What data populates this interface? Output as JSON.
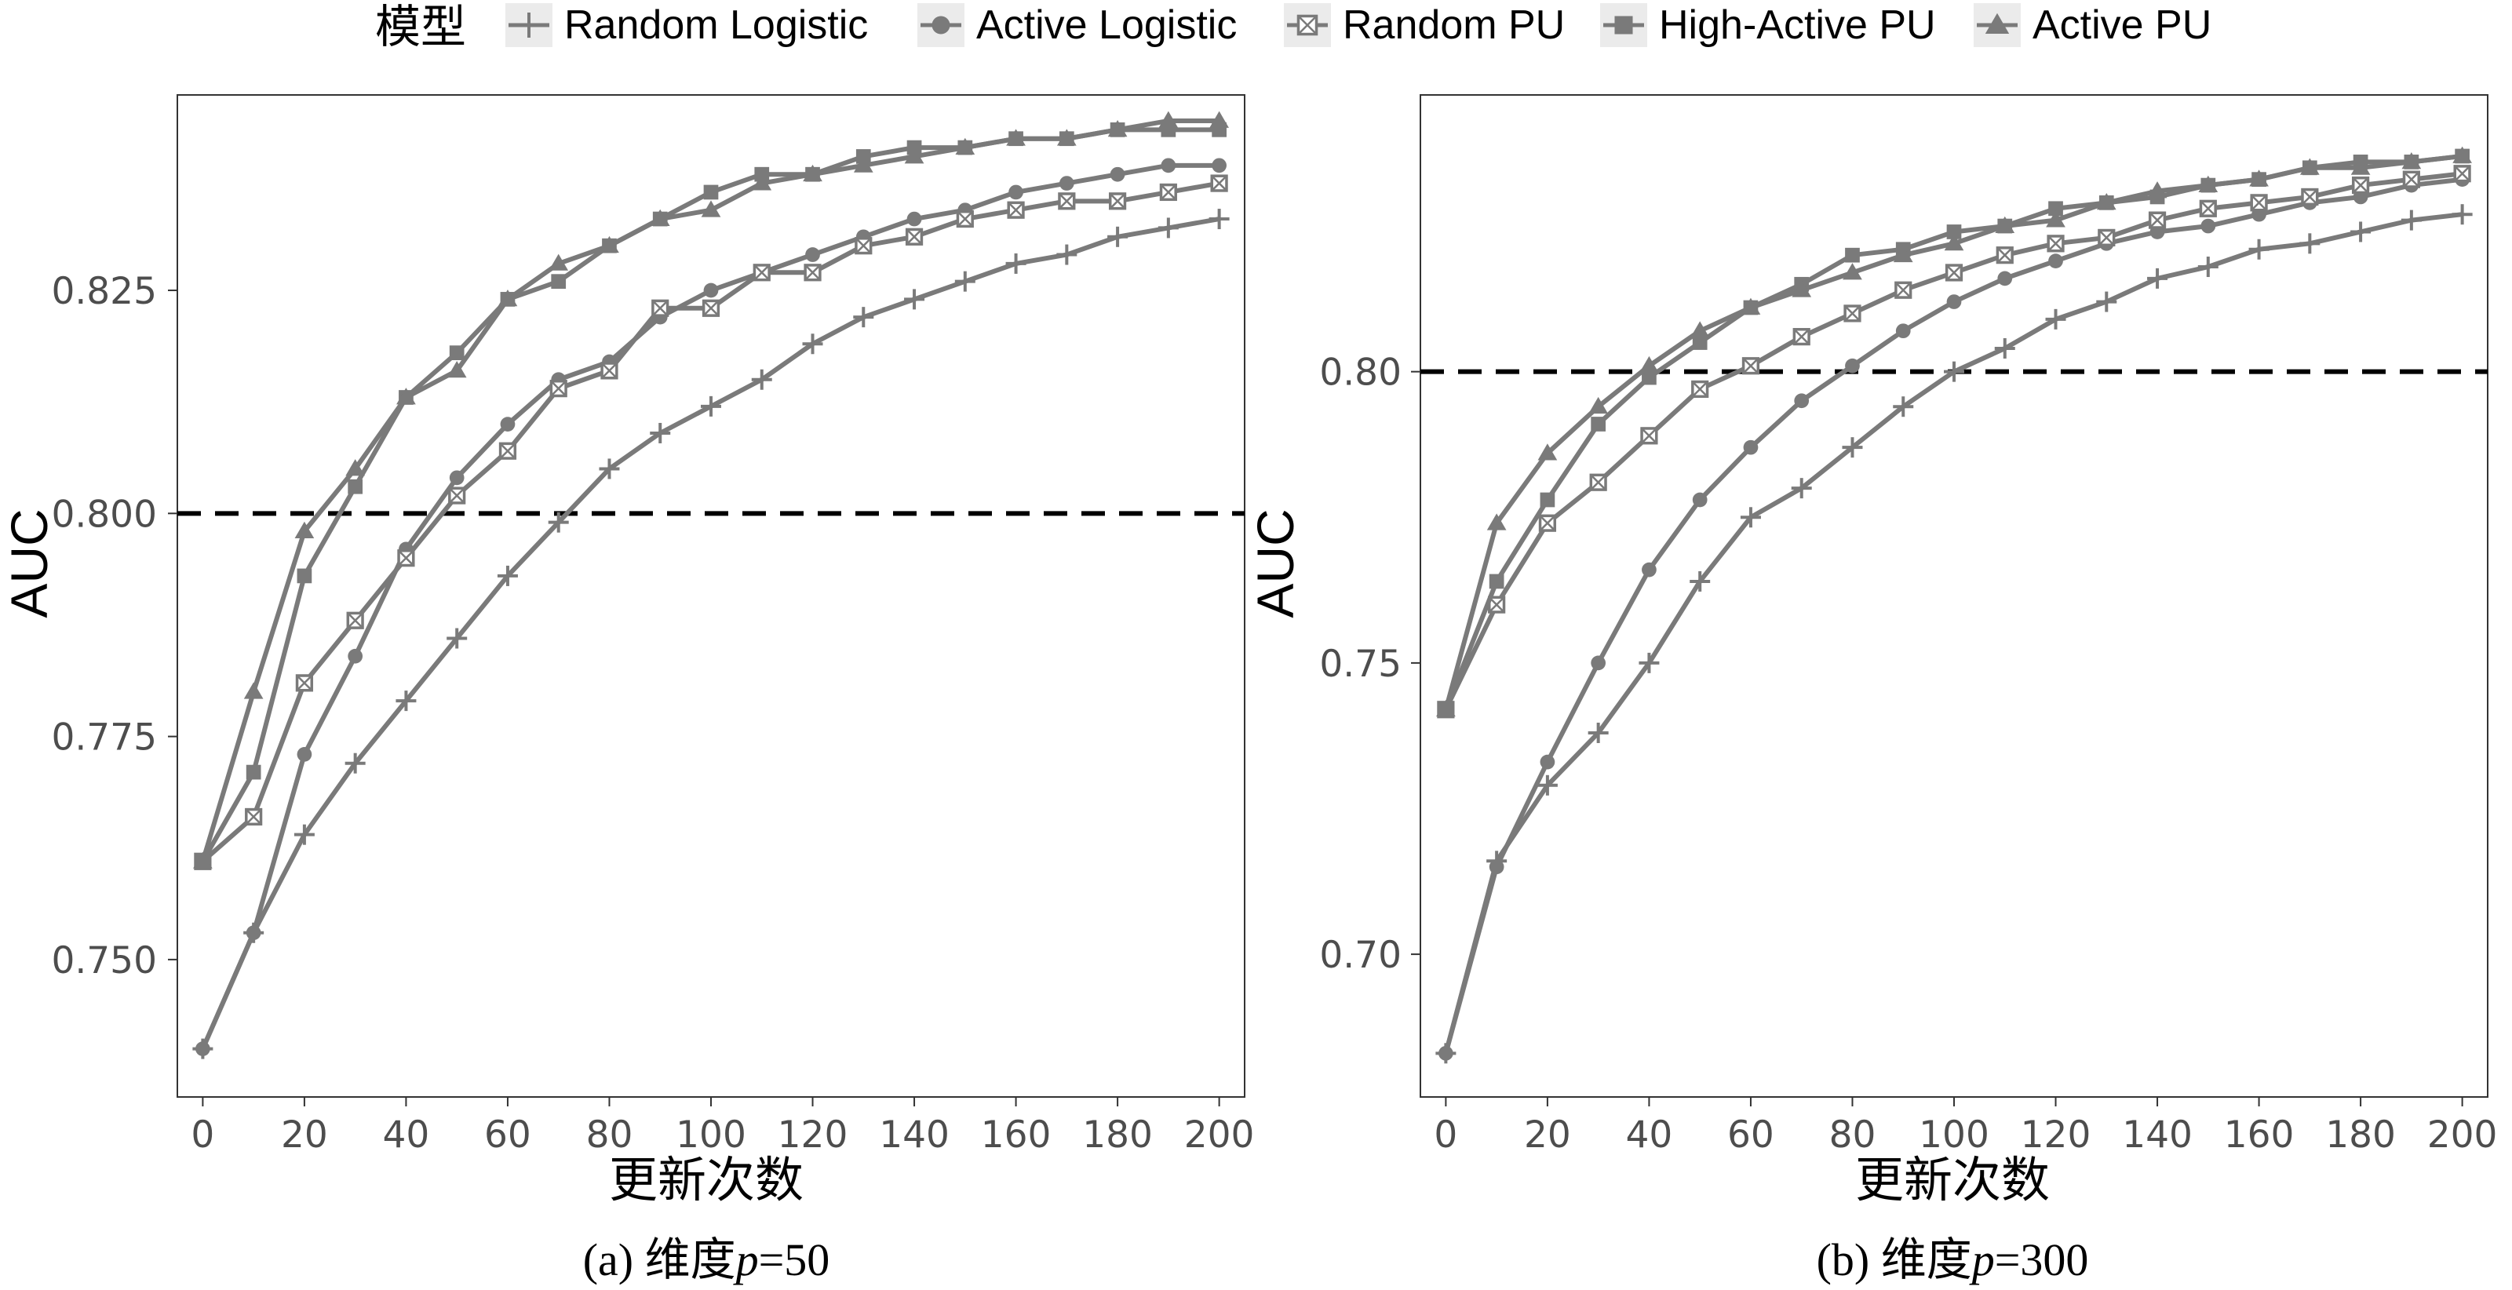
{
  "legend": {
    "title": "模型",
    "entries": [
      {
        "name": "Random Logistic",
        "marker": "cross-plus"
      },
      {
        "name": "Active Logistic",
        "marker": "filled-circle"
      },
      {
        "name": "Random PU",
        "marker": "open-square-x"
      },
      {
        "name": "High-Active PU",
        "marker": "filled-square"
      },
      {
        "name": "Active PU",
        "marker": "filled-triangle"
      }
    ]
  },
  "colors": {
    "series": "#7a7a7a",
    "threshold": "#000000",
    "axis": "#4d4d4d",
    "background": "#ffffff"
  },
  "chart_data": [
    {
      "type": "line",
      "caption_prefix": "(a) 维度",
      "caption_var": "p",
      "caption_suffix": "=50",
      "xlabel": "更新次数",
      "ylabel": "AUC",
      "x": [
        0,
        10,
        20,
        30,
        40,
        50,
        60,
        70,
        80,
        90,
        100,
        110,
        120,
        130,
        140,
        150,
        160,
        170,
        180,
        190,
        200
      ],
      "xticks": [
        "0",
        "20",
        "40",
        "60",
        "80",
        "100",
        "120",
        "140",
        "160",
        "180",
        "200"
      ],
      "xtick_values": [
        0,
        20,
        40,
        60,
        80,
        100,
        120,
        140,
        160,
        180,
        200
      ],
      "yticks": [
        "0.750",
        "0.775",
        "0.800",
        "0.825"
      ],
      "ytick_values": [
        0.75,
        0.775,
        0.8,
        0.825
      ],
      "xlim": [
        -5,
        205
      ],
      "ylim": [
        0.7346,
        0.8469
      ],
      "hline": 0.8,
      "series": [
        {
          "name": "Random Logistic",
          "values": [
            0.74,
            0.753,
            0.764,
            0.772,
            0.779,
            0.786,
            0.793,
            0.799,
            0.805,
            0.809,
            0.812,
            0.815,
            0.819,
            0.822,
            0.824,
            0.826,
            0.828,
            0.829,
            0.831,
            0.832,
            0.833
          ]
        },
        {
          "name": "Active Logistic",
          "values": [
            0.74,
            0.753,
            0.773,
            0.784,
            0.796,
            0.804,
            0.81,
            0.815,
            0.817,
            0.822,
            0.825,
            0.827,
            0.829,
            0.831,
            0.833,
            0.834,
            0.836,
            0.837,
            0.838,
            0.839,
            0.839
          ]
        },
        {
          "name": "Random PU",
          "values": [
            0.761,
            0.766,
            0.781,
            0.788,
            0.795,
            0.802,
            0.807,
            0.814,
            0.816,
            0.823,
            0.823,
            0.827,
            0.827,
            0.83,
            0.831,
            0.833,
            0.834,
            0.835,
            0.835,
            0.836,
            0.837
          ]
        },
        {
          "name": "High-Active PU",
          "values": [
            0.761,
            0.771,
            0.793,
            0.803,
            0.813,
            0.818,
            0.824,
            0.826,
            0.83,
            0.833,
            0.836,
            0.838,
            0.838,
            0.84,
            0.841,
            0.841,
            0.842,
            0.842,
            0.843,
            0.843,
            0.843
          ]
        },
        {
          "name": "Active PU",
          "values": [
            0.761,
            0.78,
            0.798,
            0.805,
            0.813,
            0.816,
            0.824,
            0.828,
            0.83,
            0.833,
            0.834,
            0.837,
            0.838,
            0.839,
            0.84,
            0.841,
            0.842,
            0.842,
            0.843,
            0.844,
            0.844
          ]
        }
      ]
    },
    {
      "type": "line",
      "caption_prefix": "(b) 维度",
      "caption_var": "p",
      "caption_suffix": "=300",
      "xlabel": "更新次数",
      "ylabel": "AUC",
      "x": [
        0,
        10,
        20,
        30,
        40,
        50,
        60,
        70,
        80,
        90,
        100,
        110,
        120,
        130,
        140,
        150,
        160,
        170,
        180,
        190,
        200
      ],
      "xticks": [
        "0",
        "20",
        "40",
        "60",
        "80",
        "100",
        "120",
        "140",
        "160",
        "180",
        "200"
      ],
      "xtick_values": [
        0,
        20,
        40,
        60,
        80,
        100,
        120,
        140,
        160,
        180,
        200
      ],
      "yticks": [
        "0.70",
        "0.75",
        "0.80"
      ],
      "ytick_values": [
        0.7,
        0.75,
        0.8
      ],
      "xlim": [
        -5,
        205
      ],
      "ylim": [
        0.6755,
        0.8475
      ],
      "hline": 0.8,
      "series": [
        {
          "name": "Random Logistic",
          "values": [
            0.683,
            0.716,
            0.729,
            0.738,
            0.75,
            0.764,
            0.775,
            0.78,
            0.787,
            0.794,
            0.8,
            0.804,
            0.809,
            0.812,
            0.816,
            0.818,
            0.821,
            0.822,
            0.824,
            0.826,
            0.827
          ]
        },
        {
          "name": "Active Logistic",
          "values": [
            0.683,
            0.715,
            0.733,
            0.75,
            0.766,
            0.778,
            0.787,
            0.795,
            0.801,
            0.807,
            0.812,
            0.816,
            0.819,
            0.822,
            0.824,
            0.825,
            0.827,
            0.829,
            0.83,
            0.832,
            0.833
          ]
        },
        {
          "name": "Random PU",
          "values": [
            0.742,
            0.76,
            0.774,
            0.781,
            0.789,
            0.797,
            0.801,
            0.806,
            0.81,
            0.814,
            0.817,
            0.82,
            0.822,
            0.823,
            0.826,
            0.828,
            0.829,
            0.83,
            0.832,
            0.833,
            0.834
          ]
        },
        {
          "name": "High-Active PU",
          "values": [
            0.742,
            0.764,
            0.778,
            0.791,
            0.799,
            0.805,
            0.811,
            0.815,
            0.82,
            0.821,
            0.824,
            0.825,
            0.828,
            0.829,
            0.83,
            0.832,
            0.833,
            0.835,
            0.836,
            0.836,
            0.837
          ]
        },
        {
          "name": "Active PU",
          "values": [
            0.742,
            0.774,
            0.786,
            0.794,
            0.801,
            0.807,
            0.811,
            0.814,
            0.817,
            0.82,
            0.822,
            0.825,
            0.826,
            0.829,
            0.831,
            0.832,
            0.833,
            0.835,
            0.835,
            0.836,
            0.837
          ]
        }
      ]
    }
  ]
}
